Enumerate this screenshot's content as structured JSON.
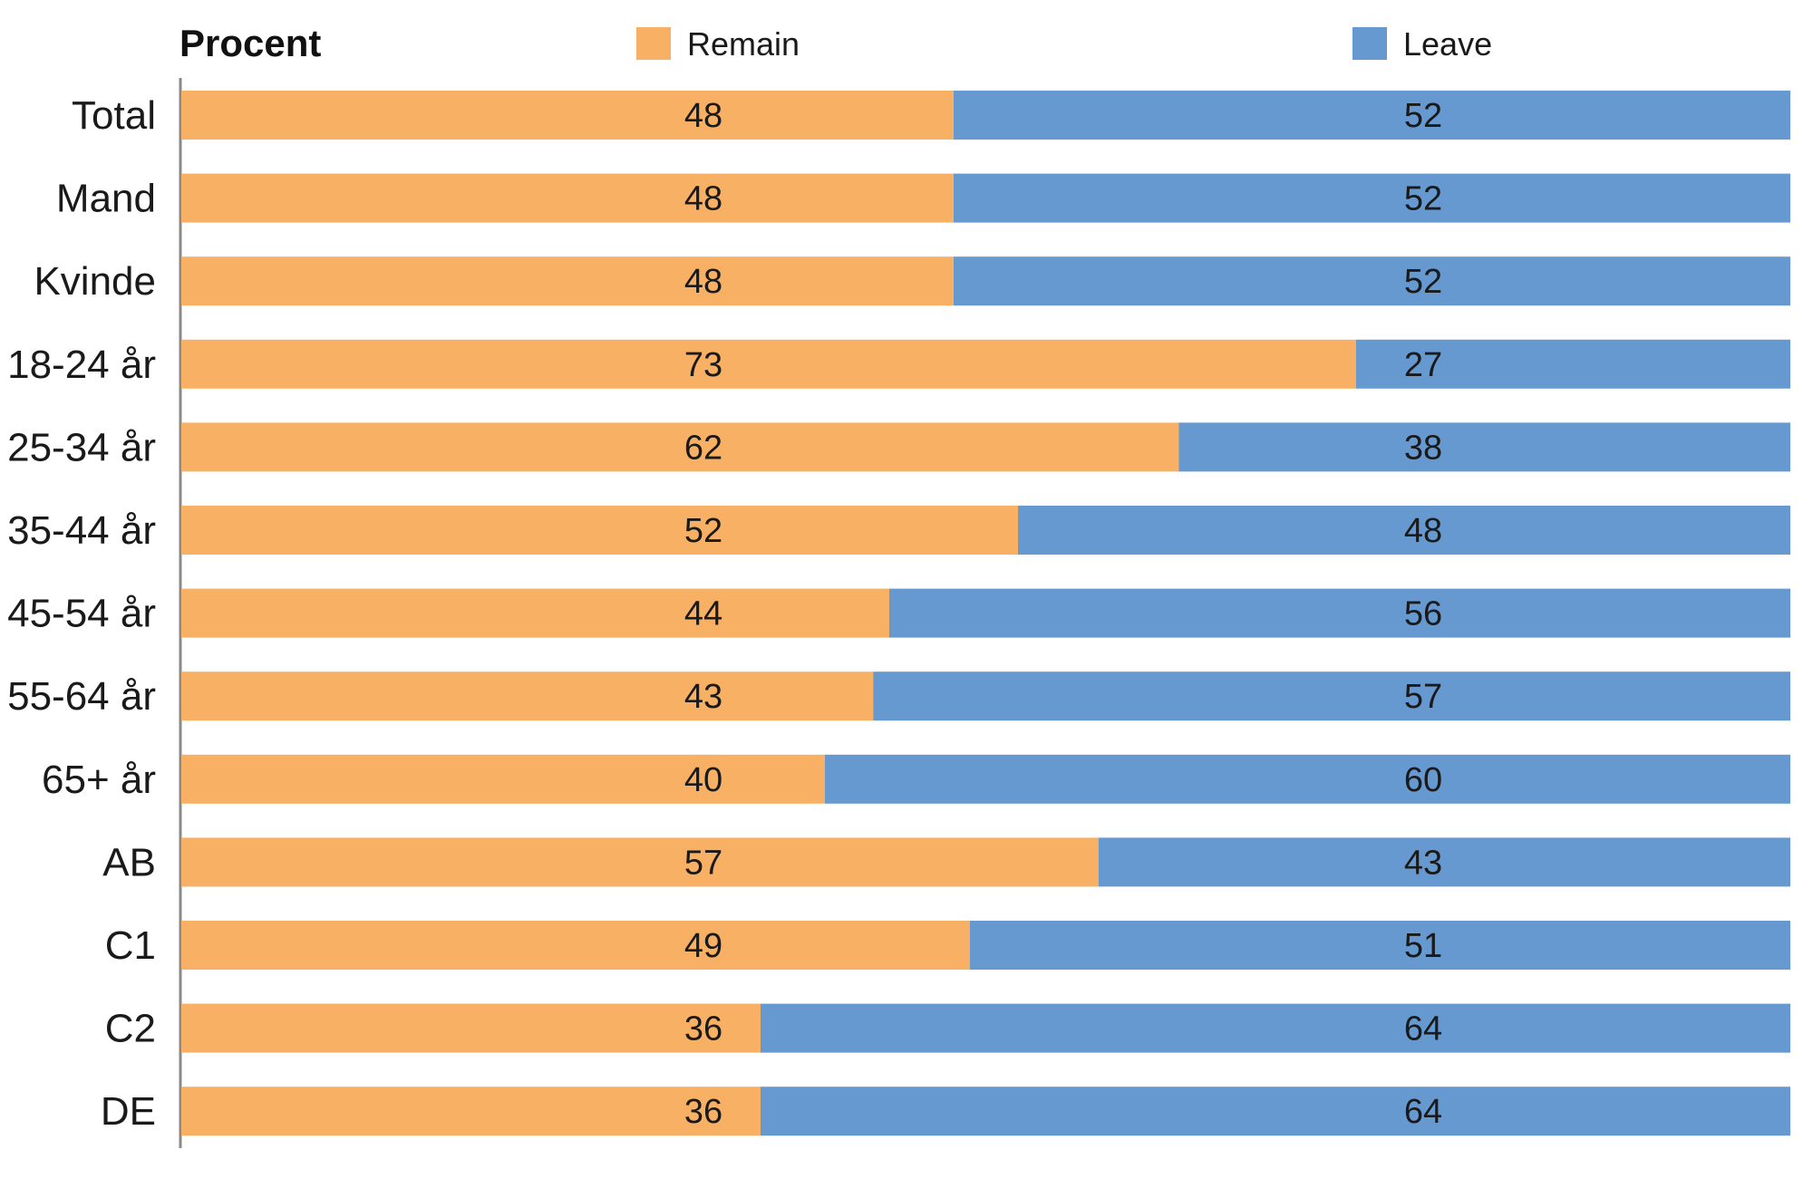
{
  "chart_data": {
    "type": "bar",
    "orientation": "horizontal",
    "stacked": true,
    "title": "",
    "unit_label": "Procent",
    "xlabel": "",
    "ylabel": "",
    "xlim": [
      0,
      100
    ],
    "grid": false,
    "legend_position": "top",
    "categories": [
      "Total",
      "Mand",
      "Kvinde",
      "18-24 år",
      "25-34 år",
      "35-44 år",
      "45-54 år",
      "55-64 år",
      "65+ år",
      "AB",
      "C1",
      "C2",
      "DE"
    ],
    "series": [
      {
        "name": "Remain",
        "color": "#F8B064",
        "values": [
          48,
          48,
          48,
          73,
          62,
          52,
          44,
          43,
          40,
          57,
          49,
          36,
          36
        ]
      },
      {
        "name": "Leave",
        "color": "#6699D0",
        "values": [
          52,
          52,
          52,
          27,
          38,
          48,
          56,
          57,
          60,
          43,
          51,
          64,
          64
        ]
      }
    ]
  }
}
